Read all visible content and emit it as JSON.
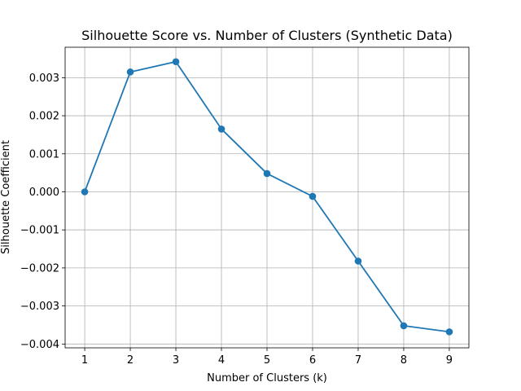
{
  "chart_data": {
    "type": "line",
    "title": "Silhouette Score vs. Number of Clusters (Synthetic Data)",
    "xlabel": "Number of Clusters (k)",
    "ylabel": "Silhouette Coefficient",
    "x": [
      1,
      2,
      3,
      4,
      5,
      6,
      7,
      8,
      9
    ],
    "series": [
      {
        "values": [
          0.0,
          0.00315,
          0.00342,
          0.00165,
          0.00048,
          -0.00012,
          -0.00182,
          -0.00352,
          -0.00368
        ],
        "color": "#1f77b4",
        "marker": "circle"
      }
    ],
    "x_ticks": [
      "1",
      "2",
      "3",
      "4",
      "5",
      "6",
      "7",
      "8",
      "9"
    ],
    "y_ticks": [
      "0.003",
      "0.002",
      "0.001",
      "0.000",
      "−0.001",
      "−0.002",
      "−0.003",
      "−0.004"
    ],
    "y_tick_values": [
      0.003,
      0.002,
      0.001,
      0.0,
      -0.001,
      -0.002,
      -0.003,
      -0.004
    ],
    "xlim": [
      0.57,
      9.43
    ],
    "ylim": [
      -0.0041,
      0.0038
    ],
    "grid": true,
    "legend": "none"
  }
}
